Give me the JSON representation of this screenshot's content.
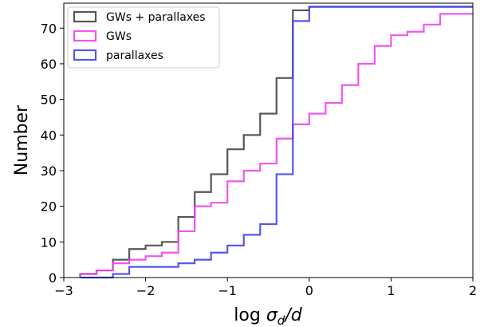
{
  "chart_data": {
    "type": "step-histogram-cumulative",
    "xlabel_main": "log ",
    "xlabel_sigma": "σ",
    "xlabel_sub": "d",
    "xlabel_tail": "/d",
    "ylabel": "Number",
    "xlim": [
      -3,
      2
    ],
    "ylim": [
      0,
      77
    ],
    "xticks": [
      -3,
      -2,
      -1,
      0,
      1,
      2
    ],
    "xtick_labels": [
      "−3",
      "−2",
      "−1",
      "0",
      "1",
      "2"
    ],
    "yticks": [
      0,
      10,
      20,
      30,
      40,
      50,
      60,
      70
    ],
    "ytick_labels": [
      "0",
      "10",
      "20",
      "30",
      "40",
      "50",
      "60",
      "70"
    ],
    "grid": false,
    "legend_position": "top-left",
    "bin_edges": [
      -2.8,
      -2.6,
      -2.4,
      -2.2,
      -2.0,
      -1.8,
      -1.6,
      -1.4,
      -1.2,
      -1.0,
      -0.8,
      -0.6,
      -0.4,
      -0.2,
      0.0,
      0.2,
      0.4,
      0.6,
      0.8,
      1.0,
      1.2,
      1.4,
      1.6,
      1.8,
      2.0
    ],
    "series": [
      {
        "name": "GWs + parallaxes",
        "color": "#444444",
        "values": [
          1,
          2,
          5,
          8,
          9,
          10,
          17,
          24,
          29,
          36,
          40,
          46,
          56,
          75,
          76,
          76,
          76,
          76,
          76,
          76,
          76,
          76,
          76,
          76
        ]
      },
      {
        "name": "GWs",
        "color": "#ee44ee",
        "values": [
          1,
          2,
          4,
          5,
          6,
          7,
          13,
          20,
          21,
          27,
          30,
          32,
          39,
          43,
          46,
          49,
          54,
          60,
          65,
          68,
          69,
          71,
          74,
          74
        ]
      },
      {
        "name": "parallaxes",
        "color": "#4444ee",
        "values": [
          0,
          0,
          1,
          3,
          3,
          3,
          4,
          5,
          7,
          9,
          12,
          15,
          29,
          72,
          76,
          76,
          76,
          76,
          76,
          76,
          76,
          76,
          76,
          76
        ]
      }
    ]
  }
}
